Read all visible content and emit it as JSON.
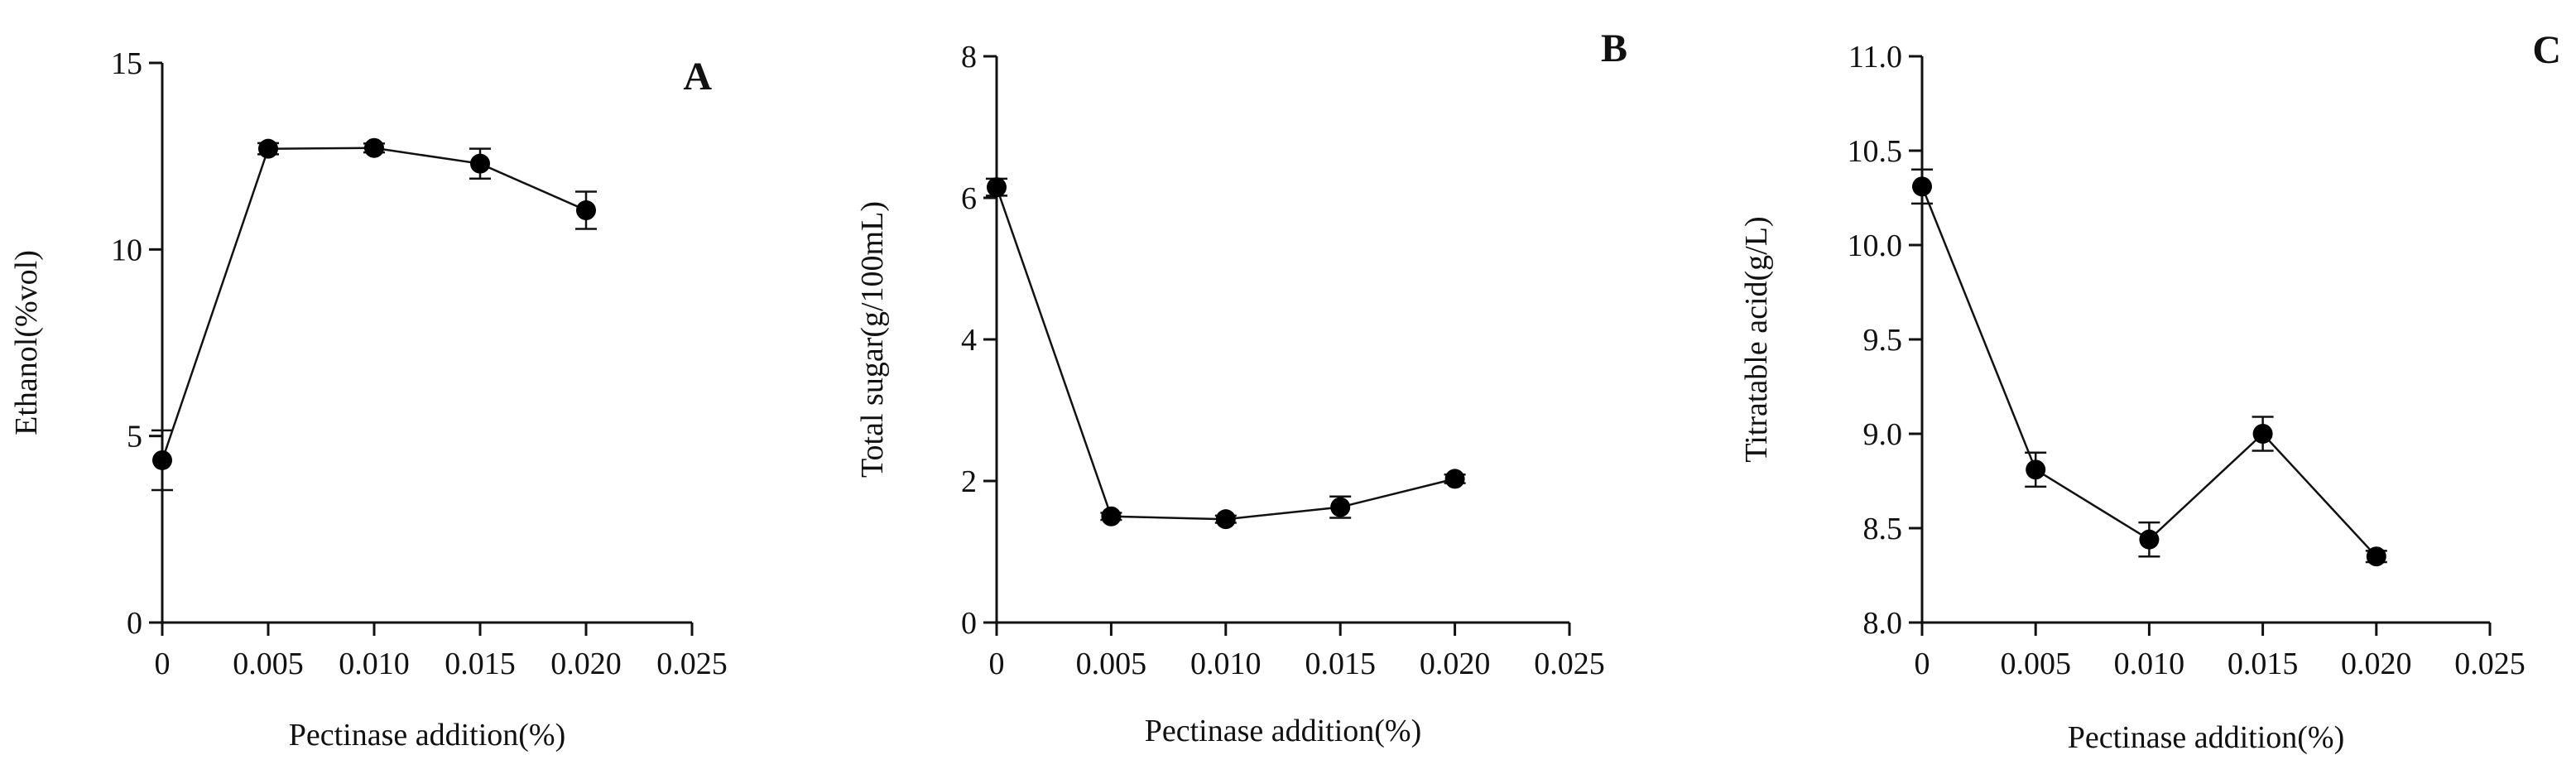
{
  "chart_data": [
    {
      "type": "line",
      "panel_label": "A",
      "xlabel": "Pectinase addition(%)",
      "ylabel": "Ethanol(%vol)",
      "xlim": [
        0,
        0.025
      ],
      "ylim": [
        0,
        15
      ],
      "x_ticks": [
        0,
        0.005,
        0.01,
        0.015,
        0.02,
        0.025
      ],
      "x_tick_labels": [
        "0",
        "0.005",
        "0.010",
        "0.015",
        "0.020",
        "0.025"
      ],
      "y_ticks": [
        0,
        5,
        10,
        15
      ],
      "y_tick_labels": [
        "0",
        "5",
        "10",
        "15"
      ],
      "series": [
        {
          "x": [
            0,
            0.005,
            0.01,
            0.015,
            0.02
          ],
          "y": [
            4.35,
            12.7,
            12.72,
            12.3,
            11.05
          ],
          "error": [
            0.8,
            0.15,
            0.12,
            0.4,
            0.5
          ]
        }
      ]
    },
    {
      "type": "line",
      "panel_label": "B",
      "xlabel": "Pectinase addition(%)",
      "ylabel": "Total sugar(g/100mL)",
      "xlim": [
        0,
        0.025
      ],
      "ylim": [
        0,
        8
      ],
      "x_ticks": [
        0,
        0.005,
        0.01,
        0.015,
        0.02,
        0.025
      ],
      "x_tick_labels": [
        "0",
        "0.005",
        "0.010",
        "0.015",
        "0.020",
        "0.025"
      ],
      "y_ticks": [
        0,
        2,
        4,
        6,
        8
      ],
      "y_tick_labels": [
        "0",
        "2",
        "4",
        "6",
        "8"
      ],
      "series": [
        {
          "x": [
            0,
            0.005,
            0.01,
            0.015,
            0.02
          ],
          "y": [
            6.15,
            1.5,
            1.46,
            1.63,
            2.03
          ],
          "error": [
            0.12,
            0.05,
            0.05,
            0.15,
            0.06
          ]
        }
      ]
    },
    {
      "type": "line",
      "panel_label": "C",
      "xlabel": "Pectinase addition(%)",
      "ylabel": "Titratable acid(g/L)",
      "xlim": [
        0,
        0.025
      ],
      "ylim": [
        8.0,
        11.0
      ],
      "x_ticks": [
        0,
        0.005,
        0.01,
        0.015,
        0.02,
        0.025
      ],
      "x_tick_labels": [
        "0",
        "0.005",
        "0.010",
        "0.015",
        "0.020",
        "0.025"
      ],
      "y_ticks": [
        8.0,
        8.5,
        9.0,
        9.5,
        10.0,
        10.5,
        11.0
      ],
      "y_tick_labels": [
        "8.0",
        "8.5",
        "9.0",
        "9.5",
        "10.0",
        "10.5",
        "11.0"
      ],
      "series": [
        {
          "x": [
            0,
            0.005,
            0.01,
            0.015,
            0.02
          ],
          "y": [
            10.31,
            8.81,
            8.44,
            9.0,
            8.35
          ],
          "error": [
            0.09,
            0.09,
            0.09,
            0.09,
            0.03
          ]
        }
      ]
    }
  ]
}
